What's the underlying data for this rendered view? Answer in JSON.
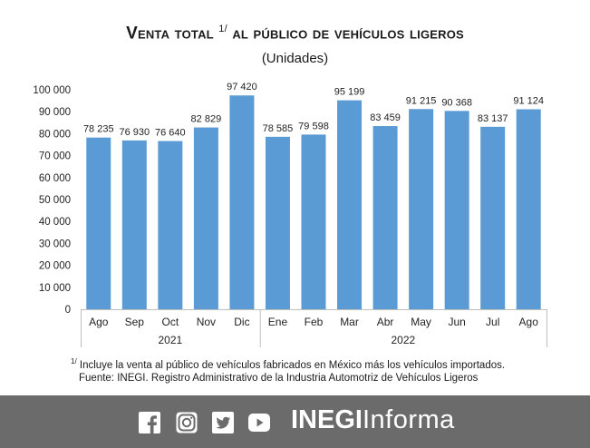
{
  "header": {
    "title": "Venta total",
    "title_sup": "1/",
    "title_rest": "al público de vehículos ligeros",
    "subtitle": "(Unidades)"
  },
  "chart_data": {
    "type": "bar",
    "categories": [
      "Ago",
      "Sep",
      "Oct",
      "Nov",
      "Dic",
      "Ene",
      "Feb",
      "Mar",
      "Abr",
      "May",
      "Jun",
      "Jul",
      "Ago"
    ],
    "values": [
      78235,
      76930,
      76640,
      82829,
      97420,
      78585,
      79598,
      95199,
      83459,
      91215,
      90368,
      83137,
      91124
    ],
    "value_labels": [
      "78 235",
      "76 930",
      "76 640",
      "82 829",
      "97 420",
      "78 585",
      "79 598",
      "95 199",
      "83 459",
      "91 215",
      "90 368",
      "83 137",
      "91 124"
    ],
    "year_groups": [
      {
        "label": "2021",
        "count": 5
      },
      {
        "label": "2022",
        "count": 8
      }
    ],
    "ylim": [
      0,
      100000
    ],
    "yticks": [
      0,
      10000,
      20000,
      30000,
      40000,
      50000,
      60000,
      70000,
      80000,
      90000,
      100000
    ],
    "ytick_labels": [
      "0",
      "10 000",
      "20 000",
      "30 000",
      "40 000",
      "50 000",
      "60 000",
      "70 000",
      "80 000",
      "90 000",
      "100 000"
    ],
    "grid": false,
    "bar_color": "#5b9bd5",
    "xlabel": "",
    "ylabel": ""
  },
  "notes": {
    "footnote_mark": "1/",
    "footnote": "Incluye la venta al público de vehículos fabricados en México más los vehículos importados.",
    "source": "Fuente: INEGI. Registro Administrativo de la Industria Automotriz de Vehículos Ligeros"
  },
  "footer": {
    "background": "#6b6b6b",
    "icons": [
      "facebook-icon",
      "instagram-icon",
      "twitter-icon",
      "youtube-icon"
    ],
    "brand_bold": "INEGI",
    "brand_light": "Informa"
  }
}
